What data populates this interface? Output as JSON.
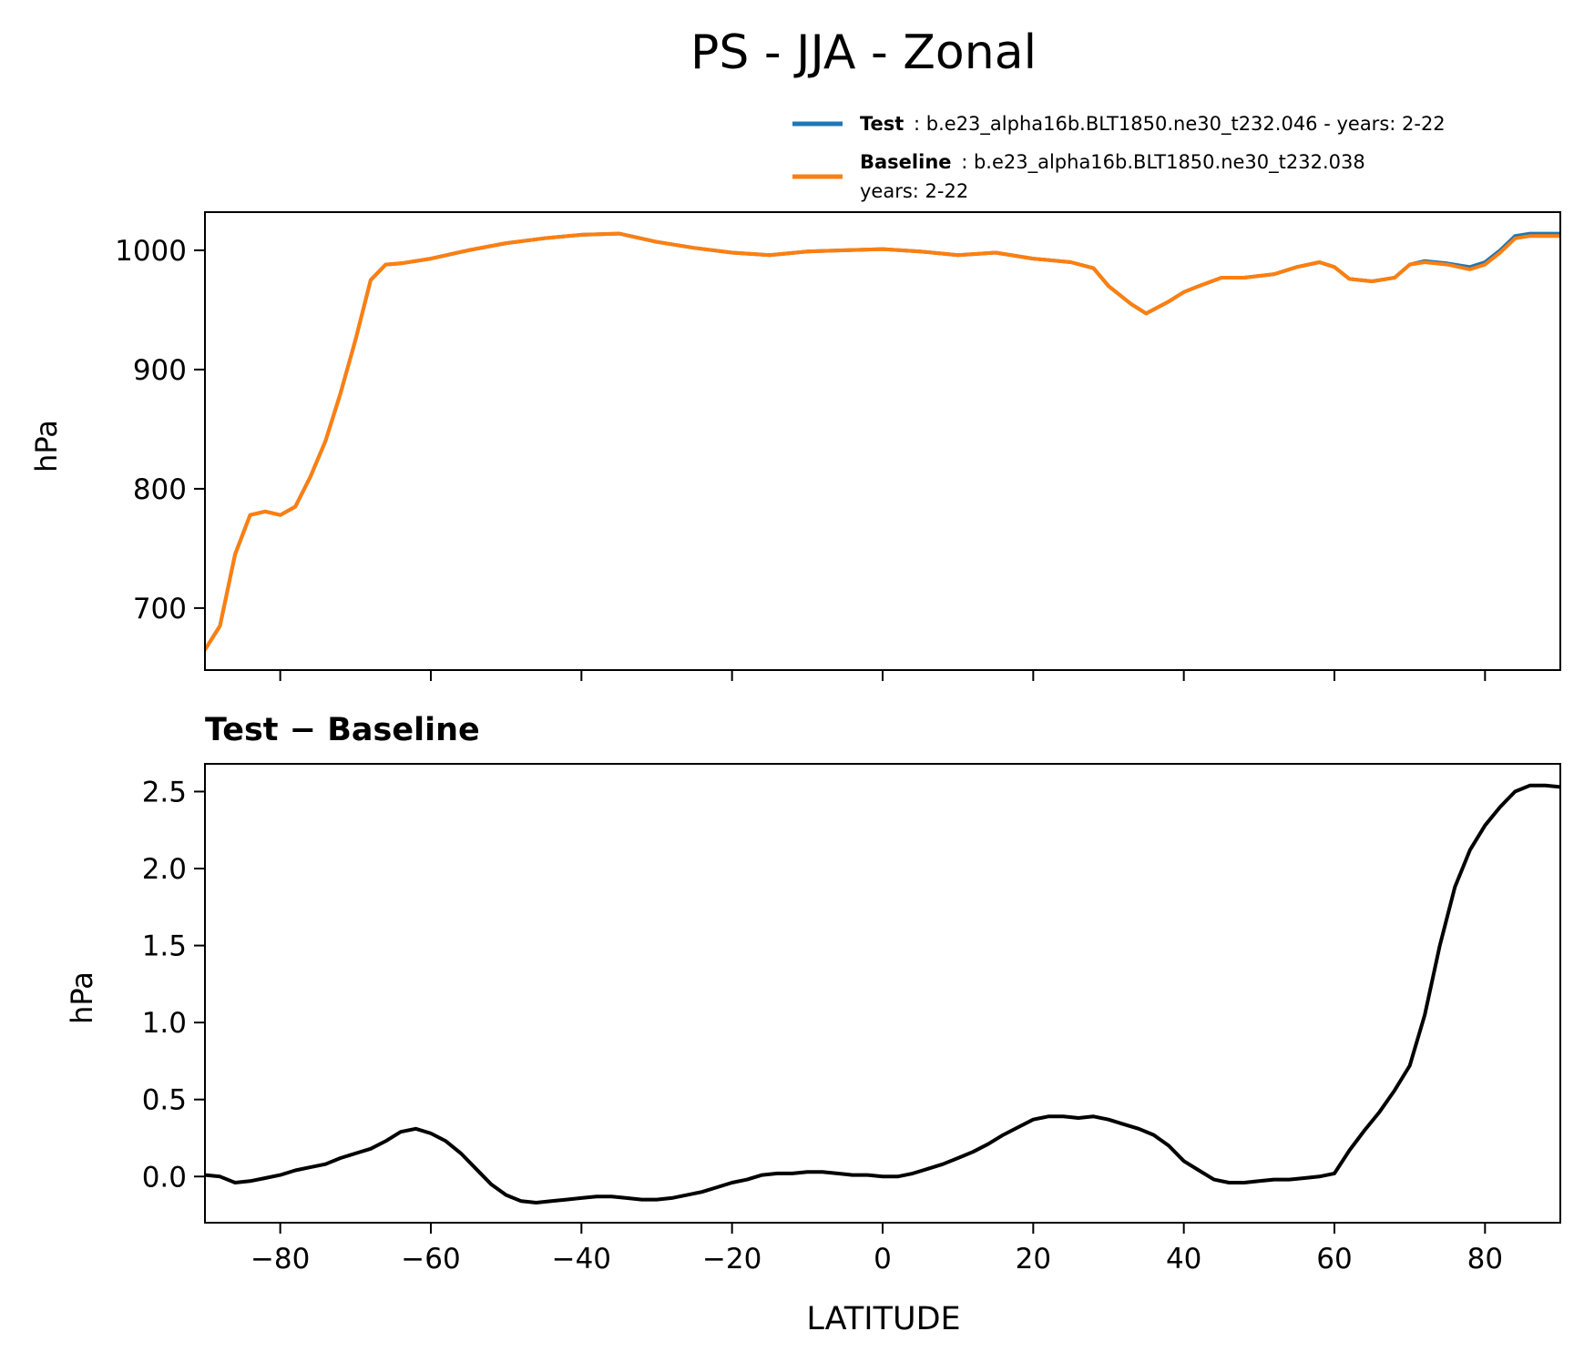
{
  "figure": {
    "title": "PS - JJA - Zonal"
  },
  "legend": {
    "entries": [
      {
        "name": "Test",
        "label_lines": [
          ": b.e23_alpha16b.BLT1850.ne30_t232.046 - years: 2-22"
        ],
        "color": "#1f77b4"
      },
      {
        "name": "Baseline",
        "label_lines": [
          ": b.e23_alpha16b.BLT1850.ne30_t232.038",
          "years: 2-22"
        ],
        "color": "#ff7f0e"
      }
    ]
  },
  "chart_data": [
    {
      "type": "line",
      "title": "",
      "xlabel": "",
      "ylabel": "hPa",
      "xlim": [
        -90,
        90
      ],
      "ylim": [
        648,
        1032
      ],
      "yticks": [
        "700",
        "800",
        "900",
        "1000"
      ],
      "ytick_values": [
        700,
        800,
        900,
        1000
      ],
      "xtick_values": [
        -80,
        -60,
        -40,
        -20,
        0,
        20,
        40,
        60,
        80
      ],
      "legend_position": "above-right",
      "grid": false,
      "series": [
        {
          "name": "Test",
          "color": "#1f77b4",
          "x": [
            -90,
            -88,
            -86,
            -84,
            -82,
            -80,
            -78,
            -76,
            -74,
            -72,
            -70,
            -68,
            -66,
            -64,
            -60,
            -55,
            -50,
            -45,
            -40,
            -35,
            -30,
            -25,
            -20,
            -15,
            -10,
            -5,
            0,
            5,
            10,
            15,
            20,
            25,
            28,
            30,
            33,
            35,
            38,
            40,
            42,
            45,
            48,
            52,
            55,
            58,
            60,
            62,
            65,
            68,
            70,
            72,
            75,
            78,
            80,
            82,
            84,
            86,
            88,
            90
          ],
          "y": [
            665,
            685,
            745,
            778,
            781,
            778,
            785,
            810,
            840,
            880,
            925,
            975,
            988,
            989,
            993,
            1000,
            1006,
            1010,
            1013,
            1014,
            1007,
            1002,
            998,
            996,
            999,
            1000,
            1001,
            999,
            996,
            998,
            993,
            990,
            985,
            970,
            955,
            947,
            957,
            965,
            970,
            977,
            977,
            980,
            986,
            990,
            986,
            976,
            974,
            977,
            988,
            991,
            989,
            986,
            990,
            1000,
            1012,
            1014,
            1014,
            1014
          ]
        },
        {
          "name": "Baseline",
          "color": "#ff7f0e",
          "x": [
            -90,
            -88,
            -86,
            -84,
            -82,
            -80,
            -78,
            -76,
            -74,
            -72,
            -70,
            -68,
            -66,
            -64,
            -60,
            -55,
            -50,
            -45,
            -40,
            -35,
            -30,
            -25,
            -20,
            -15,
            -10,
            -5,
            0,
            5,
            10,
            15,
            20,
            25,
            28,
            30,
            33,
            35,
            38,
            40,
            42,
            45,
            48,
            52,
            55,
            58,
            60,
            62,
            65,
            68,
            70,
            72,
            75,
            78,
            80,
            82,
            84,
            86,
            88,
            90
          ],
          "y": [
            665,
            685,
            745,
            778,
            781,
            778,
            785,
            810,
            840,
            880,
            925,
            975,
            988,
            989,
            993,
            1000,
            1006,
            1010,
            1013,
            1014,
            1007,
            1002,
            998,
            996,
            999,
            1000,
            1001,
            999,
            996,
            998,
            993,
            990,
            985,
            970,
            955,
            947,
            957,
            965,
            970,
            977,
            977,
            980,
            986,
            990,
            986,
            976,
            974,
            977,
            988,
            990,
            988,
            984,
            988,
            998,
            1010,
            1012,
            1012,
            1012
          ]
        }
      ]
    },
    {
      "type": "line",
      "title": "Test − Baseline",
      "xlabel": "LATITUDE",
      "ylabel": "hPa",
      "xlim": [
        -90,
        90
      ],
      "ylim": [
        -0.3,
        2.68
      ],
      "yticks": [
        "0.0",
        "0.5",
        "1.0",
        "1.5",
        "2.0",
        "2.5"
      ],
      "ytick_values": [
        0,
        0.5,
        1.0,
        1.5,
        2.0,
        2.5
      ],
      "xticks": [
        "−80",
        "−60",
        "−40",
        "−20",
        "0",
        "20",
        "40",
        "60",
        "80"
      ],
      "xtick_values": [
        -80,
        -60,
        -40,
        -20,
        0,
        20,
        40,
        60,
        80
      ],
      "grid": false,
      "series": [
        {
          "name": "Test − Baseline",
          "color": "#000000",
          "x": [
            -90,
            -88,
            -86,
            -84,
            -82,
            -80,
            -78,
            -76,
            -74,
            -72,
            -70,
            -68,
            -66,
            -64,
            -62,
            -60,
            -58,
            -56,
            -54,
            -52,
            -50,
            -48,
            -46,
            -44,
            -42,
            -40,
            -38,
            -36,
            -34,
            -32,
            -30,
            -28,
            -26,
            -24,
            -22,
            -20,
            -18,
            -16,
            -14,
            -12,
            -10,
            -8,
            -6,
            -4,
            -2,
            0,
            2,
            4,
            6,
            8,
            10,
            12,
            14,
            16,
            18,
            20,
            22,
            24,
            26,
            28,
            30,
            32,
            34,
            36,
            38,
            40,
            42,
            44,
            46,
            48,
            50,
            52,
            54,
            56,
            58,
            60,
            62,
            64,
            66,
            68,
            70,
            72,
            74,
            76,
            78,
            80,
            82,
            84,
            86,
            88,
            90
          ],
          "y": [
            0.01,
            0.0,
            -0.04,
            -0.03,
            -0.01,
            0.01,
            0.04,
            0.06,
            0.08,
            0.12,
            0.15,
            0.18,
            0.23,
            0.29,
            0.31,
            0.28,
            0.23,
            0.15,
            0.05,
            -0.05,
            -0.12,
            -0.16,
            -0.17,
            -0.16,
            -0.15,
            -0.14,
            -0.13,
            -0.13,
            -0.14,
            -0.15,
            -0.15,
            -0.14,
            -0.12,
            -0.1,
            -0.07,
            -0.04,
            -0.02,
            0.01,
            0.02,
            0.02,
            0.03,
            0.03,
            0.02,
            0.01,
            0.01,
            0.0,
            0.0,
            0.02,
            0.05,
            0.08,
            0.12,
            0.16,
            0.21,
            0.27,
            0.32,
            0.37,
            0.39,
            0.39,
            0.38,
            0.39,
            0.37,
            0.34,
            0.31,
            0.27,
            0.2,
            0.1,
            0.04,
            -0.02,
            -0.04,
            -0.04,
            -0.03,
            -0.02,
            -0.02,
            -0.01,
            0.0,
            0.02,
            0.17,
            0.3,
            0.42,
            0.56,
            0.72,
            1.05,
            1.5,
            1.88,
            2.12,
            2.28,
            2.4,
            2.5,
            2.54,
            2.54,
            2.53
          ]
        }
      ]
    }
  ]
}
